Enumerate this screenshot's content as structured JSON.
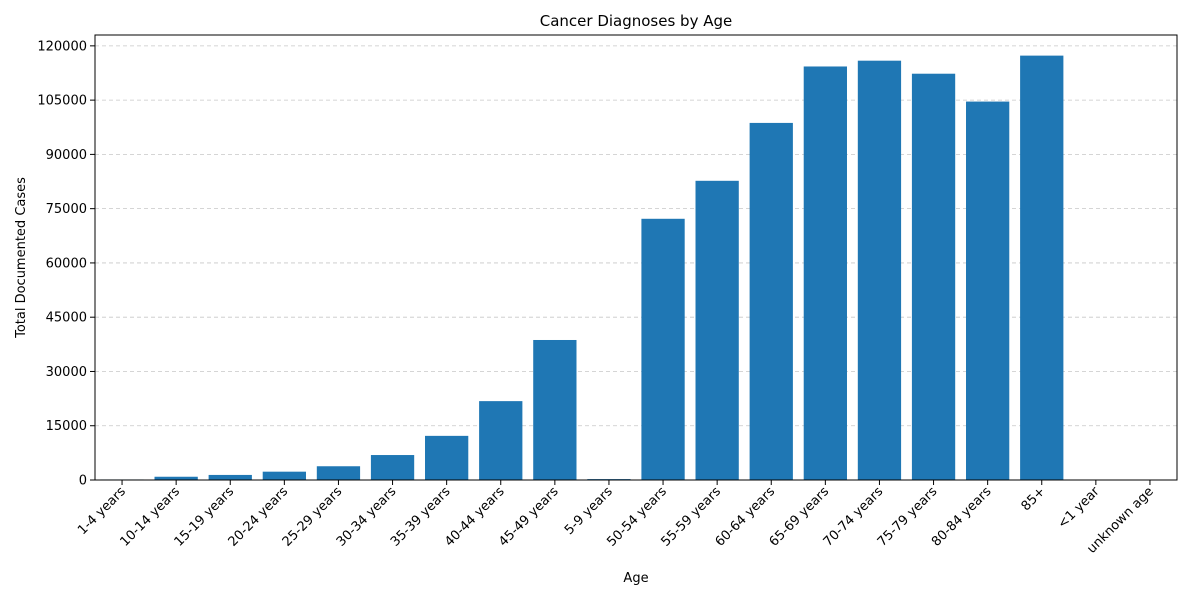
{
  "chart_data": {
    "type": "bar",
    "title": "Cancer Diagnoses by Age",
    "xlabel": "Age",
    "ylabel": "Total Documented Cases",
    "ylim": [
      0,
      123000
    ],
    "yticks": [
      0,
      15000,
      30000,
      45000,
      60000,
      75000,
      90000,
      105000,
      120000
    ],
    "grid": "y-dashed",
    "bar_color": "#1f77b4",
    "categories": [
      "1-4 years",
      "10-14 years",
      "15-19 years",
      "20-24 years",
      "25-29 years",
      "30-34 years",
      "35-39 years",
      "40-44 years",
      "45-49 years",
      "5-9 years",
      "50-54 years",
      "55-59 years",
      "60-64 years",
      "65-69 years",
      "70-74 years",
      "75-79 years",
      "80-84 years",
      "85+",
      "<1 year",
      "unknown age"
    ],
    "values": [
      150,
      900,
      1400,
      2300,
      3800,
      6900,
      12200,
      21800,
      38700,
      250,
      72200,
      82700,
      98700,
      114300,
      115900,
      112300,
      104600,
      117300,
      80,
      20
    ]
  }
}
